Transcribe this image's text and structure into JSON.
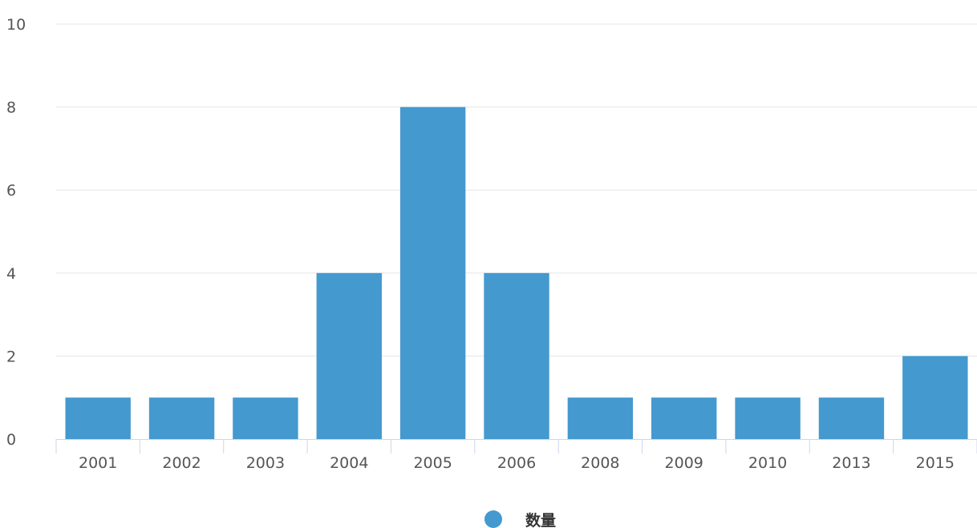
{
  "chart_data": {
    "type": "bar",
    "categories": [
      "2001",
      "2002",
      "2003",
      "2004",
      "2005",
      "2006",
      "2008",
      "2009",
      "2010",
      "2013",
      "2015"
    ],
    "series": [
      {
        "name": "数量",
        "values": [
          1,
          1,
          1,
          4,
          8,
          4,
          1,
          1,
          1,
          1,
          2
        ]
      }
    ],
    "ylim": [
      0,
      10
    ],
    "yticks": [
      "0",
      "2",
      "4",
      "6",
      "8",
      "10"
    ],
    "xlabel": "",
    "ylabel": "",
    "title": "",
    "grid": true,
    "legend_position": "bottom-center",
    "colors": {
      "bar": "#4499cf",
      "grid": "#e6e6e6",
      "axis": "#ccd6eb"
    }
  }
}
